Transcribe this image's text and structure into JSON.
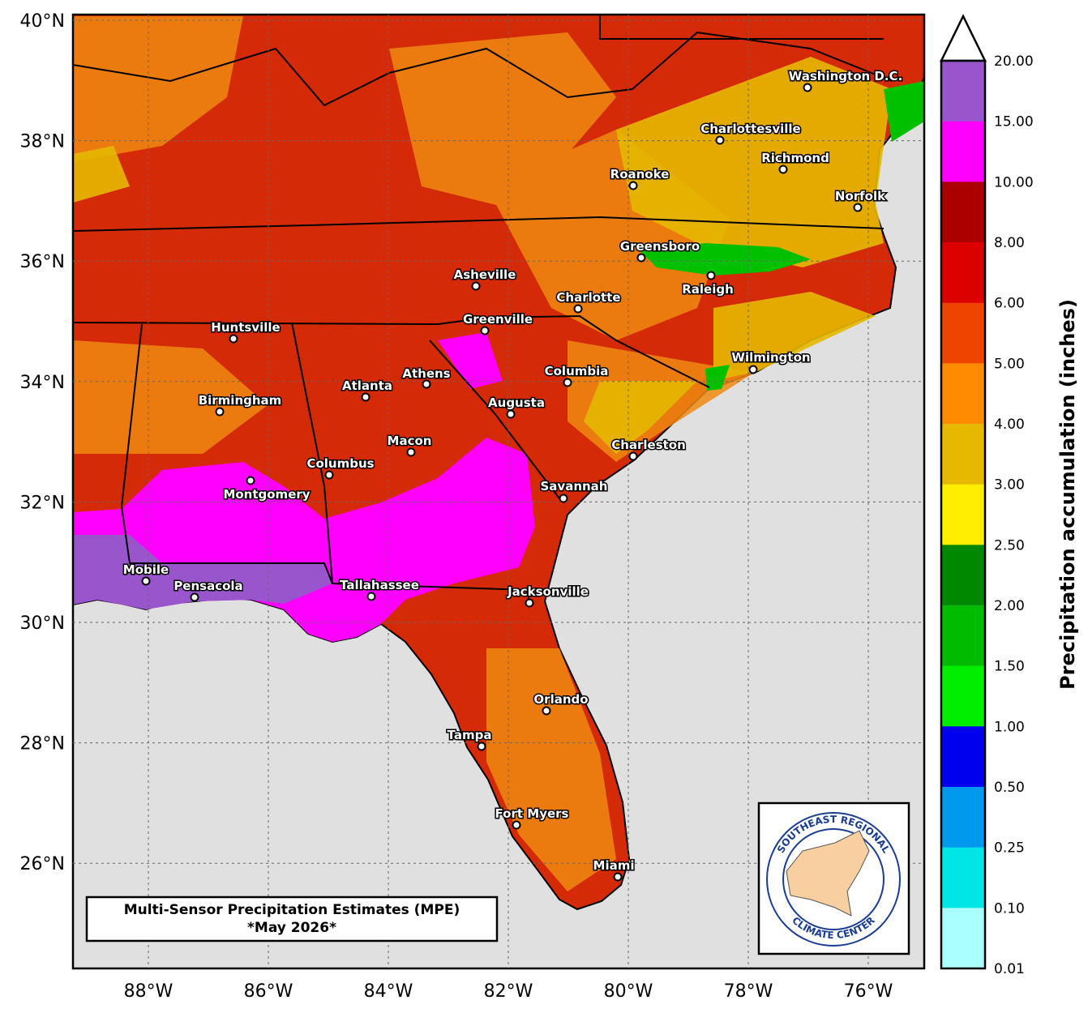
{
  "map": {
    "lat_ticks": [
      {
        "value": 40,
        "label": "40°N"
      },
      {
        "value": 38,
        "label": "38°N"
      },
      {
        "value": 36,
        "label": "36°N"
      },
      {
        "value": 34,
        "label": "34°N"
      },
      {
        "value": 32,
        "label": "32°N"
      },
      {
        "value": 30,
        "label": "30°N"
      },
      {
        "value": 28,
        "label": "28°N"
      },
      {
        "value": 26,
        "label": "26°N"
      }
    ],
    "lon_ticks": [
      {
        "value": -88,
        "label": "88°W"
      },
      {
        "value": -86,
        "label": "86°W"
      },
      {
        "value": -84,
        "label": "84°W"
      },
      {
        "value": -82,
        "label": "82°W"
      },
      {
        "value": -80,
        "label": "80°W"
      },
      {
        "value": -78,
        "label": "78°W"
      },
      {
        "value": -76,
        "label": "76°W"
      }
    ],
    "cities": [
      "Washington D.C.",
      "Charlottesville",
      "Richmond",
      "Roanoke",
      "Norfolk",
      "Greensboro",
      "Raleigh",
      "Asheville",
      "Charlotte",
      "Greenville",
      "Huntsville",
      "Wilmington",
      "Columbia",
      "Athens",
      "Atlanta",
      "Birmingham",
      "Augusta",
      "Macon",
      "Charleston",
      "Columbus",
      "Montgomery",
      "Savannah",
      "Mobile",
      "Pensacola",
      "Tallahassee",
      "Jacksonville",
      "Orlando",
      "Tampa",
      "Fort Myers",
      "Miami"
    ]
  },
  "colorbar": {
    "title": "Precipitation accumulation (inches)",
    "levels": [
      "20.00",
      "15.00",
      "10.00",
      "8.00",
      "6.00",
      "5.00",
      "4.00",
      "3.00",
      "2.50",
      "2.00",
      "1.50",
      "1.00",
      "0.50",
      "0.25",
      "0.10",
      "0.01"
    ],
    "colors": [
      "#9955cc",
      "#ff00ff",
      "#aa0000",
      "#dd0000",
      "#ee4400",
      "#ff8c00",
      "#e6b800",
      "#ffee00",
      "#008800",
      "#00bb00",
      "#00ee00",
      "#0000ee",
      "#0099ee",
      "#00e6e6",
      "#aaffff"
    ],
    "over_color": "#ffffff"
  },
  "caption": {
    "line1": "Multi-Sensor Precipitation Estimates (MPE)",
    "line2": "*May 2026*"
  },
  "logo": {
    "top": "SOUTHEAST REGIONAL",
    "bottom": "CLIMATE CENTER"
  }
}
